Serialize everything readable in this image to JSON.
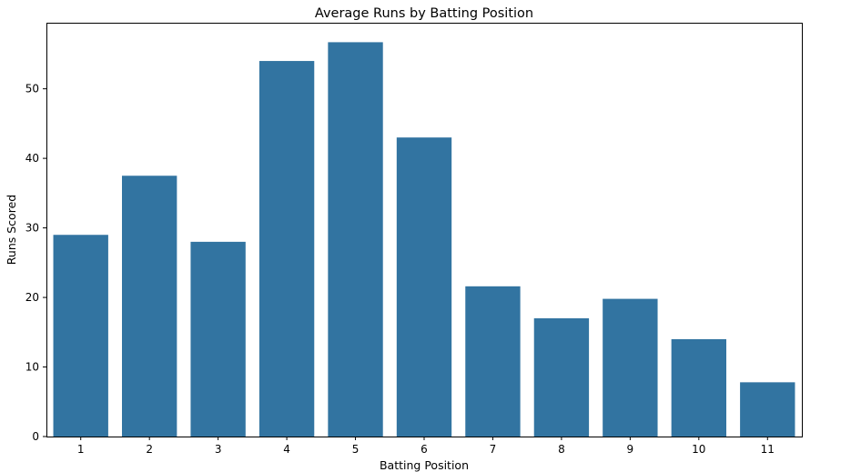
{
  "chart_data": {
    "type": "bar",
    "title": "Average Runs by Batting Position",
    "xlabel": "Batting Position",
    "ylabel": "Runs Scored",
    "categories": [
      "1",
      "2",
      "3",
      "4",
      "5",
      "6",
      "7",
      "8",
      "9",
      "10",
      "11"
    ],
    "values": [
      29.0,
      37.5,
      28.0,
      54.0,
      56.7,
      43.0,
      21.6,
      17.0,
      19.8,
      14.0,
      7.8
    ],
    "ylim": [
      0,
      59.5
    ],
    "yticks": [
      "0",
      "10",
      "20",
      "30",
      "40",
      "50"
    ],
    "grid": false,
    "legend": "none",
    "bar_color": "#3274a1"
  }
}
